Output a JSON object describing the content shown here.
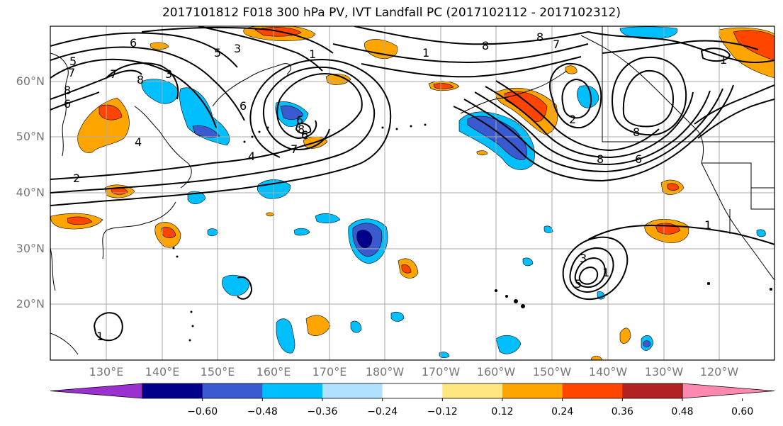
{
  "title": "2017101812 F018 300 hPa PV, IVT Landfall PC (2017102112 - 2017102312)",
  "lat_labels": [
    "60°N",
    "50°N",
    "40°N",
    "30°N",
    "20°N"
  ],
  "lon_labels": [
    "130°E",
    "140°E",
    "150°E",
    "160°E",
    "170°E",
    "180°W",
    "170°W",
    "160°W",
    "150°W",
    "140°W",
    "130°W",
    "120°W"
  ],
  "colorbar": {
    "ticks": [
      "−0.60",
      "−0.48",
      "−0.36",
      "−0.24",
      "−0.12",
      "0.12",
      "0.24",
      "0.36",
      "0.48",
      "0.60"
    ],
    "colors": [
      "#9b30d0",
      "#00008b",
      "#3a5bd0",
      "#00bfff",
      "#b0e2ff",
      "#ffffff",
      "#ffe680",
      "#ffa500",
      "#ff4500",
      "#b22222",
      "#ff88b0"
    ]
  },
  "contour_labels": [
    "6",
    "5",
    "3",
    "1",
    "8",
    "7",
    "6",
    "5",
    "7",
    "8",
    "6",
    "3",
    "6",
    "4",
    "2",
    "4",
    "6",
    "8",
    "7",
    "8",
    "7",
    "1",
    "8",
    "2",
    "8",
    "6",
    "8",
    "1",
    "1",
    "3",
    "5",
    "1",
    "1"
  ]
}
